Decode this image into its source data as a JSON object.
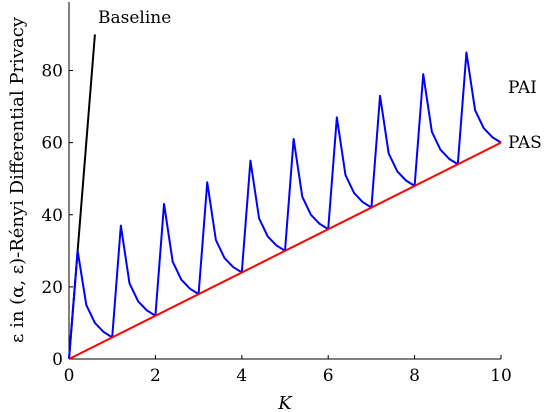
{
  "chart_data": {
    "type": "line",
    "title": "",
    "xlabel": "K",
    "ylabel": "ε in (α, ε)-Rényi Differential Privacy",
    "xlim": [
      0,
      10
    ],
    "ylim": [
      0,
      100
    ],
    "xticks": [
      0,
      2,
      4,
      6,
      8,
      10
    ],
    "yticks": [
      0,
      20,
      40,
      60,
      80
    ],
    "grid": false,
    "series": [
      {
        "name": "Baseline",
        "color": "#000000",
        "x": [
          0,
          0.6
        ],
        "y": [
          0,
          90
        ]
      },
      {
        "name": "PAI",
        "color": "#0000ff",
        "x": [
          0,
          0.2,
          0.4,
          0.6,
          0.8,
          1.0,
          1.2,
          1.4,
          1.6,
          1.8,
          2.0,
          2.2,
          2.4,
          2.6,
          2.8,
          3.0,
          3.2,
          3.4,
          3.6,
          3.8,
          4.0,
          4.2,
          4.4,
          4.6,
          4.8,
          5.0,
          5.2,
          5.4,
          5.6,
          5.8,
          6.0,
          6.2,
          6.4,
          6.6,
          6.8,
          7.0,
          7.2,
          7.4,
          7.6,
          7.8,
          8.0,
          8.2,
          8.4,
          8.6,
          8.8,
          9.0,
          9.2,
          9.4,
          9.6,
          9.8,
          10.0
        ],
        "y": [
          0,
          30,
          15,
          10,
          7.5,
          6,
          37,
          21,
          16,
          13.5,
          12,
          43,
          27,
          22,
          19.5,
          18,
          49,
          33,
          28,
          25.5,
          24,
          55,
          39,
          34,
          31.5,
          30,
          61,
          45,
          40,
          37.5,
          36,
          67,
          51,
          46,
          43.5,
          42,
          73,
          57,
          52,
          49.5,
          48,
          79,
          63,
          58,
          55.5,
          54,
          85,
          69,
          64,
          61.5,
          60
        ]
      },
      {
        "name": "PAS",
        "color": "#ff0000",
        "x": [
          0,
          10
        ],
        "y": [
          0,
          60
        ]
      }
    ]
  }
}
